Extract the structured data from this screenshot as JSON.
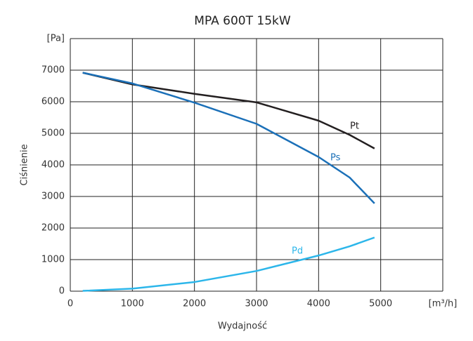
{
  "chart_data": {
    "type": "line",
    "title": "MPA 600T 15kW",
    "x_label": "Wydajność",
    "y_label": "Ciśnienie",
    "x": [
      200,
      1000,
      2000,
      3000,
      4000,
      4500,
      4900
    ],
    "series": [
      {
        "name": "Pt",
        "color": "#231f20",
        "values": [
          6920,
          6550,
          6250,
          5980,
          5400,
          4950,
          4520
        ]
      },
      {
        "name": "Ps",
        "color": "#1b70b8",
        "values": [
          6920,
          6580,
          5970,
          5300,
          4250,
          3600,
          2780
        ]
      },
      {
        "name": "Pd",
        "color": "#2cb6ea",
        "values": [
          10,
          80,
          290,
          640,
          1130,
          1420,
          1700
        ]
      }
    ],
    "xlim": [
      0,
      6000
    ],
    "ylim": [
      0,
      8000
    ],
    "xticks": [
      0,
      1000,
      2000,
      3000,
      4000,
      5000,
      {
        "value": 6000,
        "label": "[m³/h]"
      }
    ],
    "yticks": [
      0,
      1000,
      2000,
      3000,
      4000,
      5000,
      6000,
      7000,
      {
        "value": 8000,
        "label": "[Pa]"
      }
    ],
    "grid": true
  }
}
